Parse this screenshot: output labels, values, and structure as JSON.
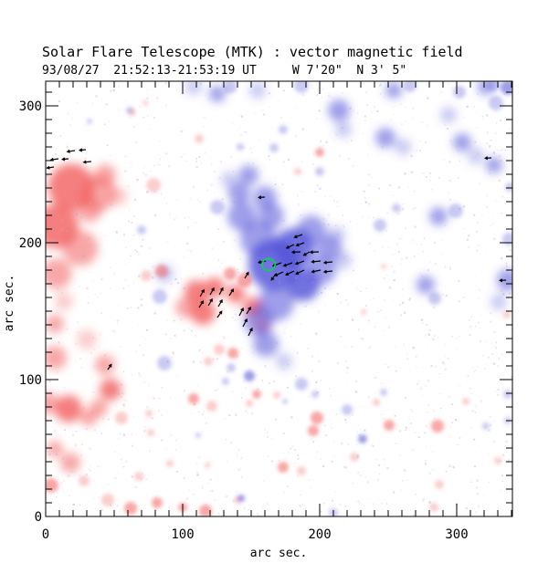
{
  "chart_data": {
    "type": "heatmap",
    "title": "Solar Flare Telescope (MTK) : vector magnetic field",
    "subtitle": "93/08/27  21:52:13-21:53:19 UT     W 7'20\"  N 3' 5\"",
    "xlabel": "arc sec.",
    "ylabel": "arc sec.",
    "xlim": [
      0,
      340
    ],
    "ylim": [
      0,
      318
    ],
    "x_major_ticks": [
      0,
      100,
      200,
      300
    ],
    "y_major_ticks": [
      0,
      100,
      200,
      300
    ],
    "minor_tick_interval": 10,
    "grid": false,
    "legend": "none",
    "colors": {
      "axis": "#000000",
      "positive_polarity": "#f25e5e",
      "negative_polarity": "#5050d8",
      "positive_speckle": "#f0a0a0",
      "negative_speckle": "#9898e8",
      "contour": "#00dd44"
    },
    "red_blobs": [
      [
        18.7,
        240.7,
        17,
        3
      ],
      [
        38.7,
        236,
        13,
        2
      ],
      [
        8,
        212,
        16,
        3
      ],
      [
        25.3,
        196,
        13,
        2
      ],
      [
        8,
        177.3,
        11,
        2
      ],
      [
        32,
        224,
        9,
        2
      ],
      [
        43.3,
        249.3,
        8,
        2
      ],
      [
        53.3,
        234,
        6.7,
        1
      ],
      [
        13.3,
        157.3,
        6.7,
        1
      ],
      [
        63.3,
        295.3,
        2.7,
        1
      ],
      [
        72.7,
        302,
        2,
        1
      ],
      [
        112,
        276,
        3.3,
        1
      ],
      [
        78.7,
        242,
        5.3,
        1
      ],
      [
        110,
        164,
        8.7,
        3
      ],
      [
        123.3,
        167.3,
        7.3,
        3
      ],
      [
        138.7,
        162.7,
        6.7,
        3
      ],
      [
        151.3,
        152.7,
        7.3,
        3
      ],
      [
        158,
        139.3,
        6,
        2
      ],
      [
        114.7,
        149.3,
        9.3,
        3
      ],
      [
        102,
        152.7,
        7.3,
        2
      ],
      [
        145.3,
        172.7,
        5.3,
        2
      ],
      [
        134.7,
        177.3,
        4.7,
        2
      ],
      [
        84.7,
        179.3,
        4.7,
        2
      ],
      [
        73.3,
        176,
        4,
        1
      ],
      [
        126.7,
        122,
        4,
        1
      ],
      [
        136.7,
        119.3,
        4,
        2
      ],
      [
        118.7,
        113.3,
        3.3,
        1
      ],
      [
        6.7,
        140.7,
        6.7,
        2
      ],
      [
        30,
        129.3,
        7.3,
        1
      ],
      [
        6.7,
        116,
        8.7,
        2
      ],
      [
        43.3,
        110.7,
        7.3,
        2
      ],
      [
        47.3,
        92.7,
        8,
        3
      ],
      [
        38.7,
        79.3,
        6.7,
        2
      ],
      [
        16.7,
        78.7,
        10,
        3
      ],
      [
        1.3,
        82.7,
        8,
        2
      ],
      [
        31.3,
        72,
        6,
        2
      ],
      [
        55.3,
        72,
        4.7,
        1
      ],
      [
        6.7,
        49.3,
        6,
        2
      ],
      [
        18,
        39.3,
        7.3,
        2
      ],
      [
        4,
        22.7,
        5.3,
        2
      ],
      [
        28,
        26,
        4,
        1
      ],
      [
        45.3,
        12,
        4.7,
        1
      ],
      [
        62,
        6,
        4.7,
        2
      ],
      [
        81.3,
        10,
        4,
        2
      ],
      [
        100,
        6.7,
        3.3,
        2
      ],
      [
        68,
        29.3,
        3.3,
        1
      ],
      [
        116.7,
        4,
        4.7,
        2
      ],
      [
        140,
        12,
        2.7,
        1
      ],
      [
        108,
        86,
        4,
        2
      ],
      [
        121.3,
        80.7,
        4,
        1
      ],
      [
        154,
        89.3,
        3.3,
        2
      ],
      [
        148.7,
        82.7,
        2.7,
        1
      ],
      [
        75.3,
        75.3,
        2.7,
        1
      ],
      [
        76.7,
        61.3,
        2.7,
        1
      ],
      [
        90.7,
        38.7,
        2.7,
        1
      ],
      [
        118,
        37.3,
        2,
        1
      ],
      [
        168.7,
        88.7,
        2.7,
        1
      ],
      [
        200,
        266,
        3.3,
        2
      ],
      [
        184,
        252,
        2.7,
        1
      ],
      [
        173.3,
        36,
        4,
        2
      ],
      [
        186.7,
        33.3,
        3.3,
        1
      ],
      [
        198,
        72,
        4.7,
        2
      ],
      [
        195.3,
        62.7,
        4,
        2
      ],
      [
        225.3,
        43.3,
        3.3,
        1
      ],
      [
        241.3,
        83.3,
        2.7,
        1
      ],
      [
        250.7,
        66.7,
        4,
        2
      ],
      [
        286,
        66,
        4.7,
        2
      ],
      [
        287.3,
        23.3,
        3.3,
        1
      ],
      [
        283.3,
        6.7,
        3.3,
        1
      ],
      [
        330,
        40.7,
        2.7,
        1
      ],
      [
        306.7,
        84,
        2.7,
        1
      ],
      [
        246.7,
        182.7,
        2,
        1
      ],
      [
        232,
        149.3,
        2,
        1
      ],
      [
        336.7,
        147.3,
        2.7,
        1
      ]
    ],
    "blue_blobs": [
      [
        166.7,
        184,
        18.7,
        3
      ],
      [
        181.3,
        196,
        14.7,
        3
      ],
      [
        155.3,
        202.7,
        13.3,
        2
      ],
      [
        143.3,
        219.3,
        10.7,
        2
      ],
      [
        164.7,
        219.3,
        9.3,
        2
      ],
      [
        194,
        209.3,
        10.7,
        2
      ],
      [
        206.7,
        196,
        9.3,
        2
      ],
      [
        201.3,
        180,
        10.7,
        2
      ],
      [
        188,
        169.3,
        12,
        3
      ],
      [
        168,
        156,
        13.3,
        2
      ],
      [
        155.3,
        142.7,
        10.7,
        2
      ],
      [
        160.7,
        126,
        9.3,
        2
      ],
      [
        174,
        113.3,
        6,
        1
      ],
      [
        186.7,
        96.7,
        4.7,
        1
      ],
      [
        141.3,
        236,
        8,
        2
      ],
      [
        148,
        249.3,
        7.3,
        2
      ],
      [
        134,
        246,
        6,
        1
      ],
      [
        125.3,
        226,
        5.3,
        1
      ],
      [
        216.7,
        187.3,
        6.7,
        1
      ],
      [
        212,
        205.3,
        6.7,
        1
      ],
      [
        160,
        232.7,
        8.7,
        2
      ],
      [
        108,
        314,
        6,
        1
      ],
      [
        125.3,
        308.7,
        6,
        2
      ],
      [
        134.7,
        314,
        5,
        1
      ],
      [
        154.7,
        311.3,
        6,
        1
      ],
      [
        186.7,
        314.7,
        5.3,
        1
      ],
      [
        214,
        296.7,
        8,
        2
      ],
      [
        217.3,
        282.7,
        6,
        1
      ],
      [
        254,
        311.3,
        6,
        2
      ],
      [
        266,
        314.7,
        4.7,
        1
      ],
      [
        248,
        276.7,
        7.3,
        2
      ],
      [
        260.7,
        270,
        6,
        1
      ],
      [
        294,
        293.3,
        6,
        1
      ],
      [
        321.3,
        314,
        6,
        2
      ],
      [
        337.3,
        313.3,
        5.3,
        2
      ],
      [
        302,
        310,
        4.7,
        1
      ],
      [
        328.7,
        302,
        5.3,
        1
      ],
      [
        326.7,
        315.3,
        4.7,
        1
      ],
      [
        304,
        273.3,
        6.7,
        2
      ],
      [
        314,
        263.3,
        6,
        1
      ],
      [
        327.3,
        256.7,
        6,
        2
      ],
      [
        286.7,
        219.3,
        6.7,
        2
      ],
      [
        299.3,
        223.3,
        5.3,
        1
      ],
      [
        338,
        202.7,
        4.7,
        1
      ],
      [
        337.3,
        172.7,
        8,
        2
      ],
      [
        330.7,
        156.7,
        6,
        1
      ],
      [
        277.3,
        169.3,
        6.7,
        2
      ],
      [
        284,
        159.3,
        4.7,
        1
      ],
      [
        244,
        212.7,
        4.7,
        1
      ],
      [
        256,
        225.3,
        3.3,
        1
      ],
      [
        338.7,
        240.7,
        3.3,
        1
      ],
      [
        70,
        209.3,
        3.3,
        1
      ],
      [
        86.7,
        177.3,
        6.7,
        1
      ],
      [
        83.3,
        160.7,
        5.3,
        1
      ],
      [
        86.7,
        112,
        5.3,
        1
      ],
      [
        148.7,
        102.7,
        4,
        2
      ],
      [
        135.3,
        108.7,
        3.3,
        1
      ],
      [
        131.3,
        98.7,
        2.7,
        1
      ],
      [
        220,
        78,
        4,
        1
      ],
      [
        231.3,
        56.7,
        3.3,
        2
      ],
      [
        196.7,
        89.3,
        2.7,
        1
      ],
      [
        246.7,
        90.7,
        2.7,
        1
      ],
      [
        321.3,
        66,
        2.7,
        1
      ],
      [
        337.3,
        70,
        2.7,
        1
      ],
      [
        337.3,
        89.3,
        3.3,
        1
      ],
      [
        210,
        2.7,
        3.3,
        1
      ],
      [
        142.7,
        13.3,
        2.7,
        2
      ],
      [
        111.3,
        59.3,
        2,
        1
      ],
      [
        174.7,
        84,
        2,
        1
      ],
      [
        61.3,
        296.7,
        2.7,
        1
      ],
      [
        32,
        288.7,
        2,
        1
      ],
      [
        200,
        252,
        3.3,
        1
      ],
      [
        166.7,
        269.3,
        3.3,
        1
      ],
      [
        142,
        270,
        2.7,
        1
      ],
      [
        173.3,
        282.7,
        3.3,
        1
      ]
    ],
    "arrows": [
      [
        187.3,
        206,
        200,
        6
      ],
      [
        181.3,
        198.7,
        205,
        6
      ],
      [
        188.7,
        200,
        200,
        6
      ],
      [
        186,
        193.3,
        182,
        6
      ],
      [
        192.7,
        193.3,
        210,
        5
      ],
      [
        199.3,
        193.3,
        182,
        6
      ],
      [
        172,
        185.3,
        200,
        6.5
      ],
      [
        180,
        185.3,
        200,
        6.5
      ],
      [
        188.7,
        186.7,
        200,
        6.5
      ],
      [
        200.7,
        186.7,
        186,
        6.5
      ],
      [
        209.3,
        186,
        186,
        6
      ],
      [
        173.3,
        178.7,
        205,
        6.5
      ],
      [
        181.3,
        179.3,
        205,
        6.5
      ],
      [
        188.7,
        180,
        205,
        6.5
      ],
      [
        200.7,
        180,
        192,
        6.5
      ],
      [
        209.3,
        179.3,
        186,
        6
      ],
      [
        160.7,
        186.7,
        192,
        5.5
      ],
      [
        168,
        177.3,
        235,
        5.5
      ],
      [
        112.7,
        160.7,
        60,
        5.5
      ],
      [
        120,
        162,
        60,
        5.5
      ],
      [
        126.7,
        162,
        62,
        5.5
      ],
      [
        134,
        161.3,
        58,
        5.5
      ],
      [
        112,
        152.7,
        58,
        5.5
      ],
      [
        118.7,
        154,
        60,
        5.5
      ],
      [
        126,
        153.3,
        60,
        5.5
      ],
      [
        125.3,
        145.3,
        55,
        5.5
      ],
      [
        141.3,
        146.7,
        62,
        6
      ],
      [
        146.7,
        148,
        60,
        5.5
      ],
      [
        144,
        138.7,
        62,
        6
      ],
      [
        148,
        132,
        64,
        6
      ],
      [
        145.3,
        174,
        58,
        5
      ],
      [
        21.3,
        267.3,
        188,
        5.5
      ],
      [
        29.3,
        268,
        185,
        4.5
      ],
      [
        9.3,
        261.3,
        188,
        5.5
      ],
      [
        16.7,
        261.3,
        185,
        4.5
      ],
      [
        33.3,
        259.3,
        185,
        5.5
      ],
      [
        6,
        255.3,
        188,
        5
      ],
      [
        160,
        233.3,
        183,
        4.5
      ],
      [
        325.3,
        262,
        183,
        4.5
      ],
      [
        336,
        172.7,
        183,
        4.5
      ],
      [
        45.3,
        107.3,
        55,
        4.5
      ]
    ],
    "contour": {
      "x": 162.7,
      "y": 184,
      "rx": 4.7,
      "ry": 4.3
    },
    "noise": {
      "count": 1500,
      "seed": 7
    }
  }
}
